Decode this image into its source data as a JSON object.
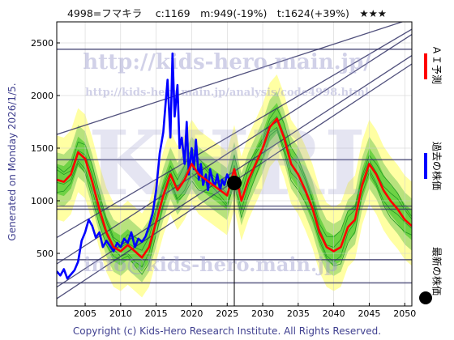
{
  "header": "4998=フマキラ　 c:1169　m:949(-19%)　t:1624(+39%)　★★★",
  "side_text": "Generated on Monday 2026/1/5.",
  "watermarks": [
    "http://kids-hero.main.jp/",
    "http://kids-hero.main.jp/analysis/code4998.html",
    "KHRI",
    "info@kids-hero.main.jp"
  ],
  "copyright": "Copyright (c) Kids-Hero Research Institute. All Rights Reserved.",
  "legend": [
    {
      "label": "ＡＩ予測",
      "color": "#ff0000"
    },
    {
      "label": "過去の株価",
      "color": "#0000ff"
    },
    {
      "label": "最新の株価",
      "color": "#000000"
    }
  ],
  "colors": {
    "forecast": "#ff0000",
    "history": "#0000ff",
    "band_green": "#55cc33",
    "band_yellow": "#ffff99",
    "grid": "#333366"
  },
  "chart_data": {
    "type": "line",
    "title": "4998=フマキラ　 c:1169　m:949(-19%)　t:1624(+39%)　★★★",
    "xlim": [
      2001,
      2051
    ],
    "ylim": [
      0,
      2700
    ],
    "x_ticks": [
      2005,
      2010,
      2015,
      2020,
      2025,
      2030,
      2035,
      2040,
      2045,
      2050
    ],
    "y_ticks": [
      500,
      1000,
      1500,
      2000,
      2500
    ],
    "grid": true,
    "legend_position": "right",
    "current": {
      "x": 2026.0,
      "y": 1169
    },
    "horizontal_levels": [
      2440,
      1390,
      949,
      920,
      440,
      220
    ],
    "trend_lines": [
      {
        "x": [
          2001,
          2051
        ],
        "y": [
          1630,
          2730
        ]
      },
      {
        "x": [
          2001,
          2051
        ],
        "y": [
          650,
          2630
        ]
      },
      {
        "x": [
          2001,
          2051
        ],
        "y": [
          400,
          2580
        ]
      },
      {
        "x": [
          2001,
          2051
        ],
        "y": [
          180,
          2380
        ]
      },
      {
        "x": [
          2001,
          2051
        ],
        "y": [
          70,
          2300
        ]
      }
    ],
    "series": [
      {
        "name": "過去の株価",
        "color": "#0000ff",
        "x": [
          2001.0,
          2001.5,
          2002.0,
          2002.5,
          2003.0,
          2003.5,
          2004.0,
          2004.5,
          2005.0,
          2005.5,
          2006.0,
          2006.5,
          2007.0,
          2007.5,
          2008.0,
          2008.5,
          2009.0,
          2009.5,
          2010.0,
          2010.5,
          2011.0,
          2011.5,
          2012.0,
          2012.5,
          2013.0,
          2013.5,
          2014.0,
          2014.5,
          2015.0,
          2015.5,
          2016.0,
          2016.3,
          2016.6,
          2017.0,
          2017.3,
          2017.6,
          2018.0,
          2018.3,
          2018.6,
          2019.0,
          2019.3,
          2019.6,
          2020.0,
          2020.3,
          2020.6,
          2021.0,
          2021.3,
          2021.6,
          2022.0,
          2022.3,
          2022.6,
          2023.0,
          2023.3,
          2023.6,
          2024.0,
          2024.3,
          2024.6,
          2025.0,
          2025.5
        ],
        "y": [
          330,
          290,
          350,
          260,
          300,
          340,
          420,
          620,
          700,
          820,
          760,
          650,
          700,
          560,
          620,
          570,
          520,
          600,
          560,
          640,
          600,
          700,
          560,
          640,
          610,
          660,
          760,
          880,
          1100,
          1450,
          1650,
          1900,
          2150,
          1600,
          2400,
          1800,
          2100,
          1500,
          1600,
          1350,
          1750,
          1250,
          1500,
          1300,
          1580,
          1200,
          1350,
          1150,
          1250,
          1100,
          1300,
          1180,
          1150,
          1250,
          1100,
          1200,
          1150,
          1250,
          1169
        ]
      },
      {
        "name": "ＡＩ予測",
        "color": "#ff0000",
        "x": [
          2001.0,
          2002.0,
          2003.0,
          2004.0,
          2005.0,
          2006.0,
          2007.0,
          2008.0,
          2009.0,
          2010.0,
          2011.0,
          2012.0,
          2013.0,
          2014.0,
          2015.0,
          2016.0,
          2017.0,
          2018.0,
          2019.0,
          2020.0,
          2021.0,
          2022.0,
          2023.0,
          2024.0,
          2025.0,
          2026.0,
          2027.0,
          2028.0,
          2029.0,
          2030.0,
          2031.0,
          2032.0,
          2033.0,
          2034.0,
          2035.0,
          2036.0,
          2037.0,
          2038.0,
          2039.0,
          2040.0,
          2041.0,
          2042.0,
          2043.0,
          2044.0,
          2045.0,
          2046.0,
          2047.0,
          2048.0,
          2049.0,
          2050.0,
          2051.0
        ],
        "y": [
          1200,
          1180,
          1250,
          1460,
          1400,
          1180,
          920,
          700,
          560,
          520,
          580,
          520,
          460,
          560,
          800,
          1050,
          1250,
          1100,
          1200,
          1350,
          1250,
          1200,
          1150,
          1100,
          1050,
          1300,
          1000,
          1200,
          1350,
          1500,
          1700,
          1780,
          1600,
          1350,
          1250,
          1100,
          930,
          700,
          560,
          520,
          560,
          750,
          820,
          1150,
          1350,
          1250,
          1100,
          1000,
          920,
          820,
          760
        ]
      }
    ]
  }
}
